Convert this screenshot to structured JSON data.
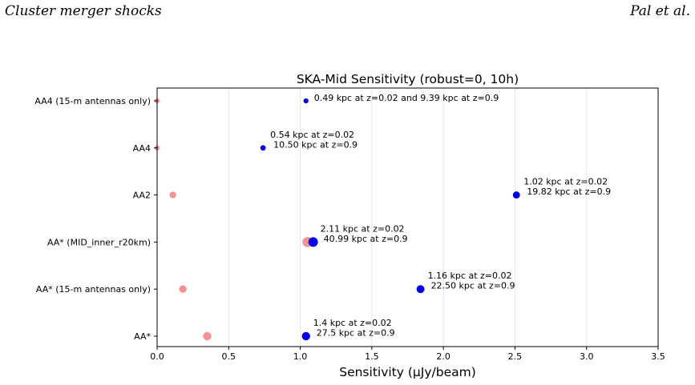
{
  "header": {
    "left": "Cluster merger shocks",
    "right": "Pal et al."
  },
  "chart_data": {
    "type": "scatter",
    "title": "SKA-Mid Sensitivity (robust=0, 10h)",
    "xlabel": "Sensitivity (μJy/beam)",
    "ylabel": "",
    "xlim": [
      0,
      3.5
    ],
    "xticks": [
      "0.0",
      "0.5",
      "1.0",
      "1.5",
      "2.0",
      "2.5",
      "3.0",
      "3.5"
    ],
    "xtick_values": [
      0,
      0.5,
      1.0,
      1.5,
      2.0,
      2.5,
      3.0,
      3.5
    ],
    "grid": "x",
    "categories": [
      "AA*",
      "AA* (15-m antennas only)",
      "AA* (MID_inner_r20km)",
      "AA2",
      "AA4",
      "AA4 (15-m antennas only)"
    ],
    "series": [
      {
        "color": "#f08080",
        "values": [
          0.35,
          0.18,
          1.05,
          0.11,
          0.0,
          0.0
        ],
        "sizes": [
          1.0,
          0.9,
          1.2,
          0.8,
          0.6,
          0.6
        ]
      },
      {
        "color": "#0000e6",
        "values": [
          1.04,
          1.84,
          1.09,
          2.51,
          0.74,
          1.04
        ],
        "sizes": [
          1.0,
          0.95,
          1.15,
          0.85,
          0.65,
          0.6
        ]
      }
    ],
    "annotations": [
      {
        "category": "AA4 (15-m antennas only)",
        "x": 1.04,
        "lines": [
          "0.49 kpc at z=0.02 and 9.39 kpc at z=0.9"
        ]
      },
      {
        "category": "AA4",
        "x": 0.74,
        "lines": [
          "0.54 kpc at z=0.02",
          "10.50 kpc at z=0.9"
        ]
      },
      {
        "category": "AA2",
        "x": 2.51,
        "lines": [
          "1.02 kpc at z=0.02",
          "19.82 kpc at z=0.9"
        ]
      },
      {
        "category": "AA* (MID_inner_r20km)",
        "x": 1.09,
        "lines": [
          "2.11 kpc at z=0.02",
          "40.99 kpc at z=0.9"
        ]
      },
      {
        "category": "AA* (15-m antennas only)",
        "x": 1.84,
        "lines": [
          "1.16 kpc at z=0.02",
          "22.50 kpc at z=0.9"
        ]
      },
      {
        "category": "AA*",
        "x": 1.04,
        "lines": [
          "1.4 kpc at z=0.02",
          "27.5 kpc at z=0.9"
        ]
      }
    ]
  }
}
